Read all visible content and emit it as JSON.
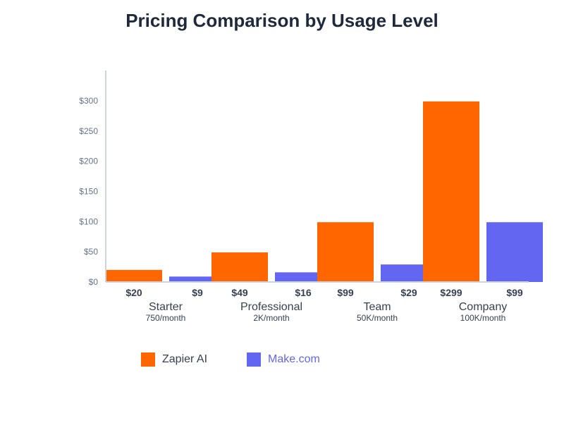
{
  "chart_data": {
    "type": "bar",
    "title": "Pricing Comparison by Usage Level",
    "xlabel": "",
    "ylabel": "",
    "ylim": [
      0,
      350
    ],
    "yticks": [
      0,
      50,
      100,
      150,
      200,
      250,
      300
    ],
    "ytick_labels": [
      "$0",
      "$50",
      "$100",
      "$150",
      "$200",
      "$250",
      "$300"
    ],
    "categories": [
      "Starter",
      "Professional",
      "Team",
      "Company"
    ],
    "category_sublabels": [
      "750/month",
      "2K/month",
      "50K/month",
      "100K/month"
    ],
    "series": [
      {
        "name": "Zapier AI",
        "color": "#ff6600",
        "values": [
          20,
          49,
          99,
          299
        ],
        "value_labels": [
          "$20",
          "$49",
          "$99",
          "$299"
        ]
      },
      {
        "name": "Make.com",
        "color": "#6366f1",
        "values": [
          9,
          16,
          29,
          99
        ],
        "value_labels": [
          "$9",
          "$16",
          "$29",
          "$99"
        ]
      }
    ],
    "grid": false,
    "legend_position": "bottom-left"
  },
  "colors": {
    "axis": "#cbd5e1",
    "tick_text": "#64748b",
    "value_text": "#374151",
    "category_text": "#374151",
    "title": "#1e293b"
  }
}
